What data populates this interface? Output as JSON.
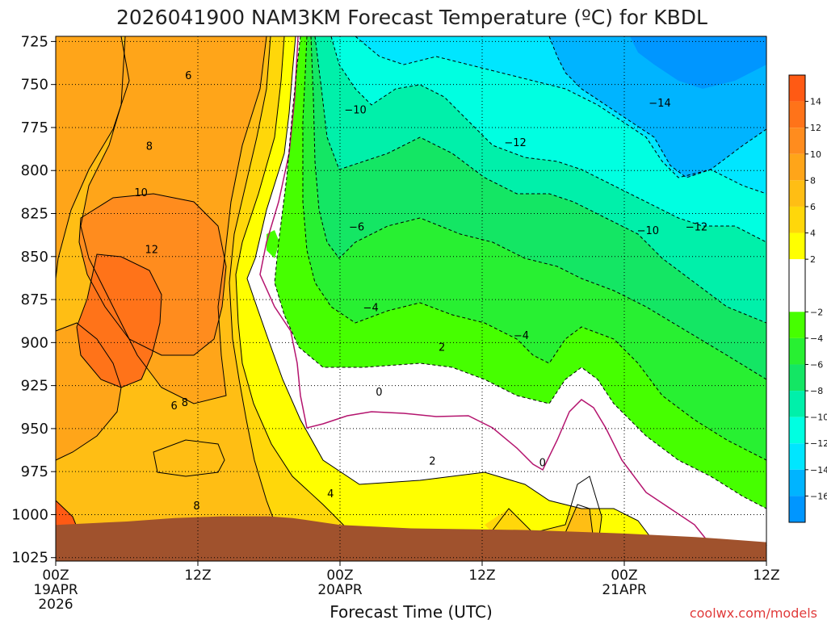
{
  "chart_data": {
    "type": "filled-contour time-height cross section",
    "title": "2026041900 NAM3KM Forecast Temperature (ºC) for KBDL",
    "xlabel": "Forecast Time (UTC)",
    "ylabel": "",
    "credit": "coolwx.com/models",
    "x_range_hours": [
      0,
      60
    ],
    "y_range_hpa": [
      722,
      1027
    ],
    "x_ticks": [
      {
        "hour": 0,
        "label": "00Z",
        "date": "19APR",
        "year": "2026"
      },
      {
        "hour": 12,
        "label": "12Z",
        "date": "",
        "year": ""
      },
      {
        "hour": 24,
        "label": "00Z",
        "date": "20APR",
        "year": ""
      },
      {
        "hour": 36,
        "label": "12Z",
        "date": "",
        "year": ""
      },
      {
        "hour": 48,
        "label": "00Z",
        "date": "21APR",
        "year": ""
      },
      {
        "hour": 60,
        "label": "12Z",
        "date": "",
        "year": ""
      }
    ],
    "y_ticks": [
      725,
      750,
      775,
      800,
      825,
      850,
      875,
      900,
      925,
      950,
      975,
      1000,
      1025
    ],
    "colorbar": {
      "labels": [
        14,
        12,
        10,
        8,
        6,
        4,
        2,
        -2,
        -4,
        -6,
        -8,
        -10,
        -12,
        -14,
        -16
      ],
      "bins": [
        {
          "min": 14,
          "max": 16,
          "color": "#ff5a14"
        },
        {
          "min": 12,
          "max": 14,
          "color": "#ff7319"
        },
        {
          "min": 10,
          "max": 12,
          "color": "#ff8c1e"
        },
        {
          "min": 8,
          "max": 10,
          "color": "#ffa519"
        },
        {
          "min": 6,
          "max": 8,
          "color": "#ffbe14"
        },
        {
          "min": 4,
          "max": 6,
          "color": "#ffd70a"
        },
        {
          "min": 2,
          "max": 4,
          "color": "#ffff00"
        },
        {
          "min": -2,
          "max": 2,
          "color": "#ffffff"
        },
        {
          "min": -4,
          "max": -2,
          "color": "#46ff00"
        },
        {
          "min": -6,
          "max": -4,
          "color": "#28f032"
        },
        {
          "min": -8,
          "max": -6,
          "color": "#14e664"
        },
        {
          "min": -10,
          "max": -8,
          "color": "#00f0aa"
        },
        {
          "min": -12,
          "max": -10,
          "color": "#00ffe1"
        },
        {
          "min": -14,
          "max": -12,
          "color": "#00e6ff"
        },
        {
          "min": -16,
          "max": -14,
          "color": "#00b4ff"
        },
        {
          "min": -18,
          "max": -16,
          "color": "#0096ff"
        }
      ]
    },
    "surface": {
      "color": "#a0522d",
      "hours": [
        0,
        6,
        10,
        14,
        18,
        20,
        24,
        30,
        40,
        48,
        54,
        56,
        60
      ],
      "pressure_hpa": [
        1006,
        1004,
        1002,
        1001,
        1001,
        1002,
        1006,
        1008,
        1009,
        1011,
        1013,
        1014,
        1016
      ]
    },
    "contour_labels": [
      {
        "value": "6",
        "hour": 11.2,
        "p": 745
      },
      {
        "value": "8",
        "hour": 7.9,
        "p": 786
      },
      {
        "value": "10",
        "hour": 7.2,
        "p": 813
      },
      {
        "value": "12",
        "hour": 8.1,
        "p": 846
      },
      {
        "value": "6",
        "hour": 10.0,
        "p": 937
      },
      {
        "value": "8",
        "hour": 10.9,
        "p": 935
      },
      {
        "value": "8",
        "hour": 11.9,
        "p": 995
      },
      {
        "value": "4",
        "hour": 23.2,
        "p": 988
      },
      {
        "value": "2",
        "hour": 31.8,
        "p": 969
      },
      {
        "value": "2",
        "hour": 32.6,
        "p": 903
      },
      {
        "value": "0",
        "hour": 27.3,
        "p": 929
      },
      {
        "value": "0",
        "hour": 41.1,
        "p": 970
      },
      {
        "value": "−4",
        "hour": 26.6,
        "p": 880
      },
      {
        "value": "−4",
        "hour": 39.3,
        "p": 896
      },
      {
        "value": "−6",
        "hour": 25.4,
        "p": 833
      },
      {
        "value": "−10",
        "hour": 25.3,
        "p": 765
      },
      {
        "value": "−12",
        "hour": 38.8,
        "p": 784
      },
      {
        "value": "−14",
        "hour": 51.0,
        "p": 761
      },
      {
        "value": "−10",
        "hour": 50.0,
        "p": 835
      },
      {
        "value": "−12",
        "hour": 54.1,
        "p": 833
      }
    ]
  }
}
